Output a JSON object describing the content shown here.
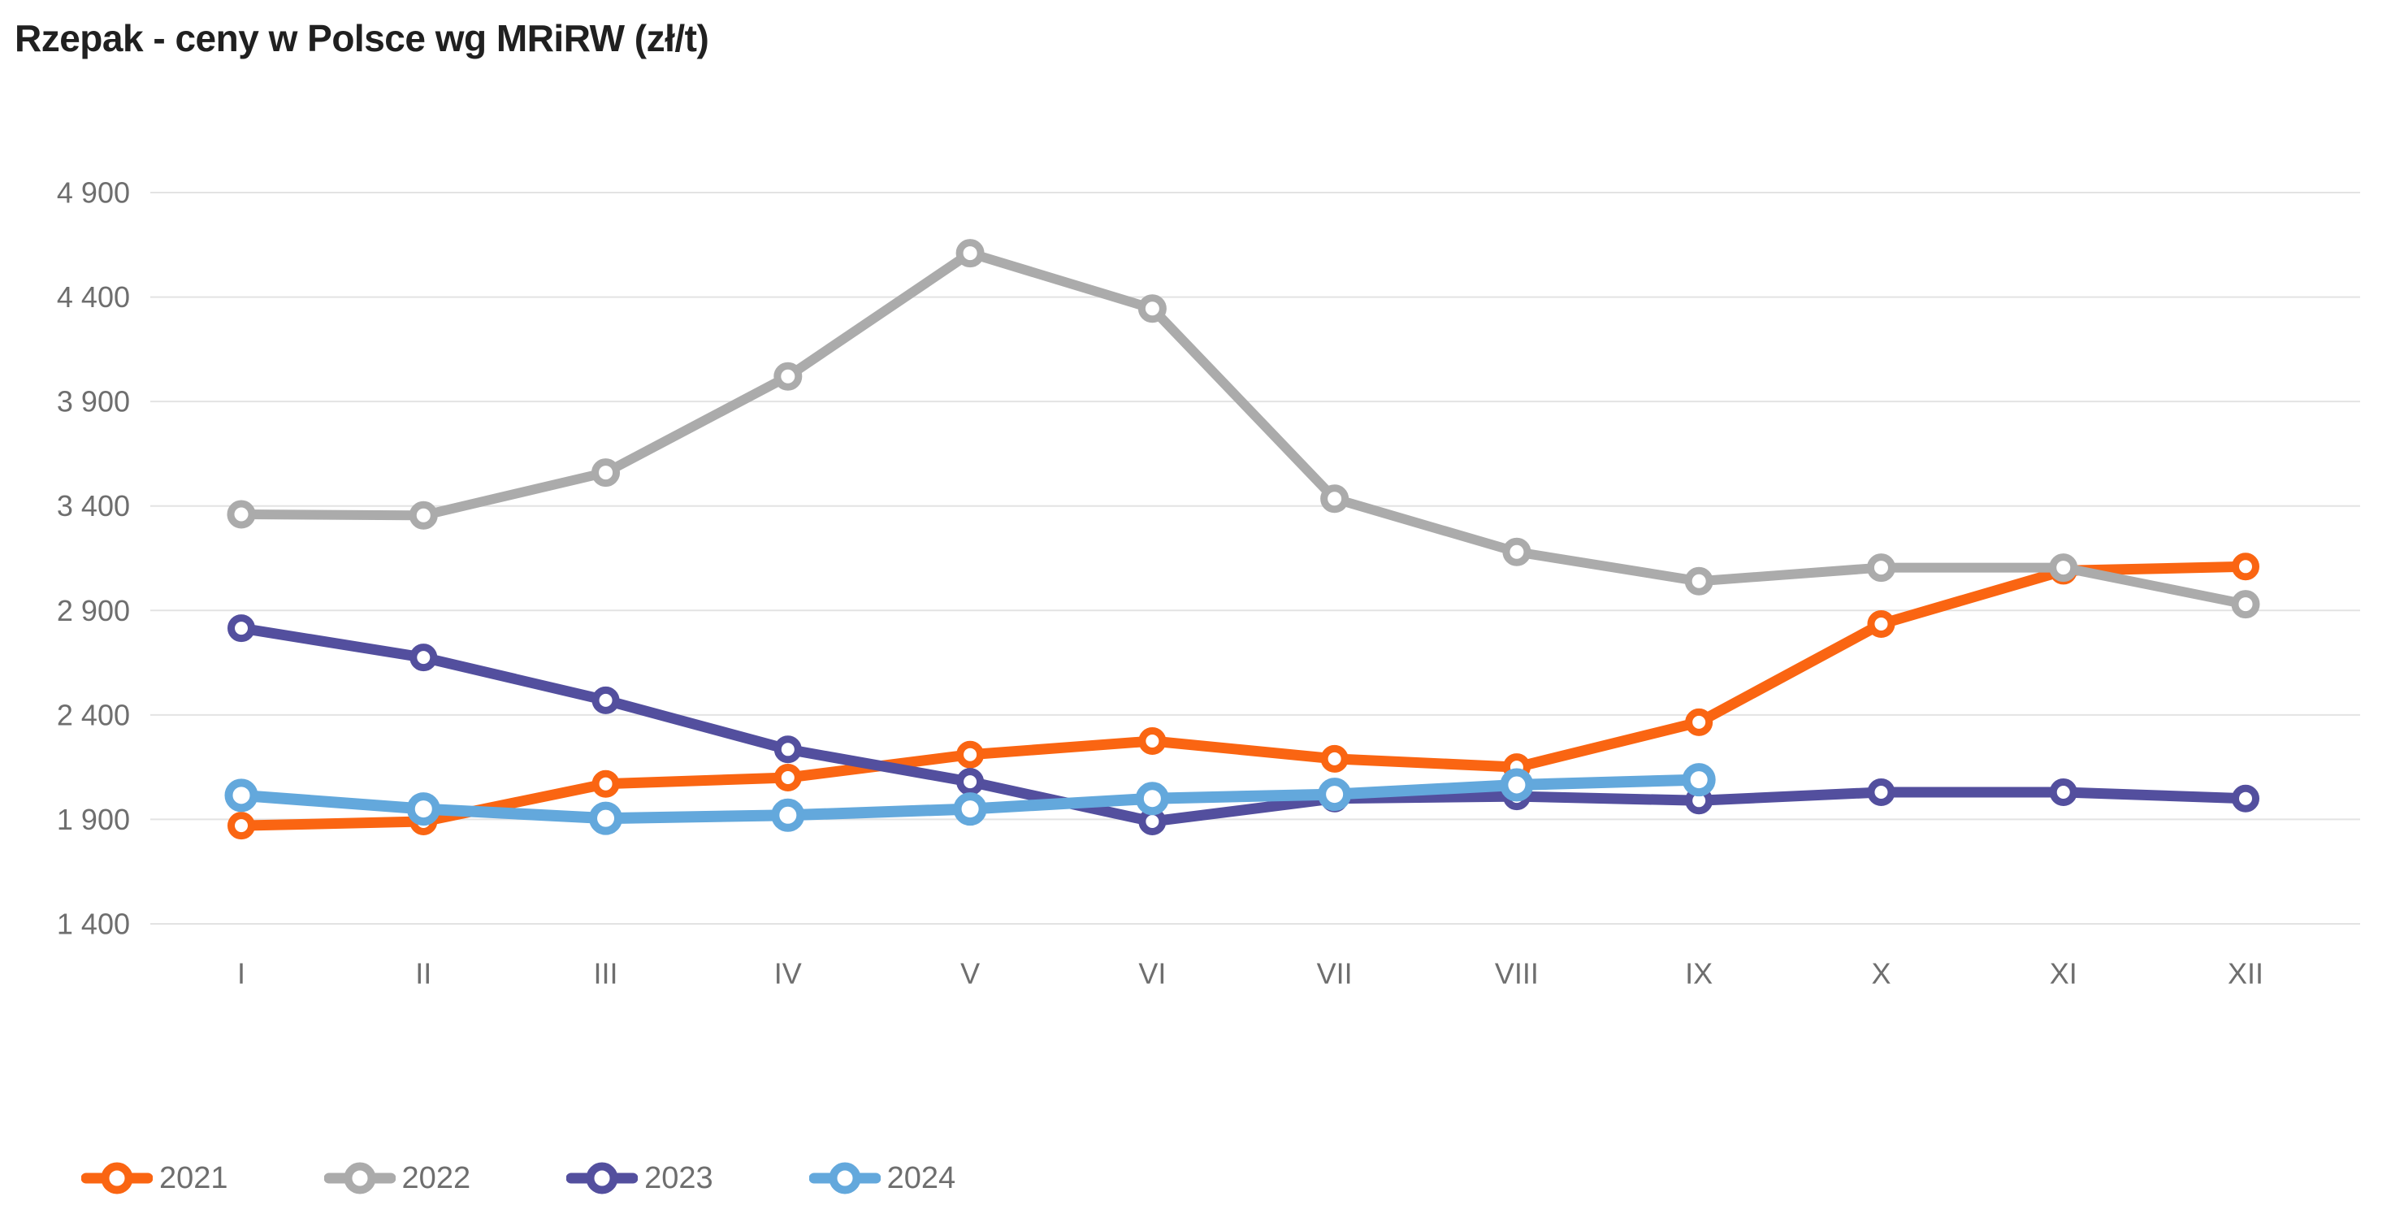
{
  "title": "Rzepak - ceny w Polsce wg MRiRW (zł/t)",
  "colors": {
    "background": "#ffffff",
    "gridline": "#E3E3E3",
    "axis_text": "#6E6E6E",
    "title_text": "#202020",
    "series_2021": "#FA6512",
    "series_2022": "#ABABAB",
    "series_2023": "#534F9E",
    "series_2024": "#63A8DC"
  },
  "chart_data": {
    "type": "line",
    "title": "Rzepak - ceny w Polsce wg MRiRW (zł/t)",
    "xlabel": "",
    "ylabel": "",
    "x": [
      "I",
      "II",
      "III",
      "IV",
      "V",
      "VI",
      "VII",
      "VIII",
      "IX",
      "X",
      "XI",
      "XII"
    ],
    "series": [
      {
        "name": "2021",
        "color": "#FA6512",
        "values": [
          1870,
          1890,
          2070,
          2100,
          2210,
          2275,
          2190,
          2150,
          2365,
          2835,
          3090,
          3110
        ]
      },
      {
        "name": "2022",
        "color": "#ABABAB",
        "values": [
          3360,
          3355,
          3560,
          4020,
          4610,
          4345,
          3435,
          3180,
          3040,
          3105,
          3105,
          2930
        ]
      },
      {
        "name": "2023",
        "color": "#534F9E",
        "values": [
          2815,
          2675,
          2470,
          2235,
          2080,
          1890,
          2000,
          2010,
          1990,
          2030,
          2030,
          2000
        ]
      },
      {
        "name": "2024",
        "color": "#63A8DC",
        "values": [
          2015,
          1950,
          1905,
          1920,
          1950,
          2000,
          2020,
          2065,
          2090,
          null,
          null,
          null
        ]
      }
    ],
    "ylim": [
      1400,
      4900
    ],
    "ytick_step": 500,
    "ytick_labels": [
      "4 900",
      "4 400",
      "3 900",
      "3 400",
      "2 900",
      "2 400",
      "1 900",
      "1 400"
    ],
    "grid": "horizontal only",
    "legend_position": "bottom-left",
    "legend_entries": [
      "2021",
      "2022",
      "2023",
      "2024"
    ]
  }
}
